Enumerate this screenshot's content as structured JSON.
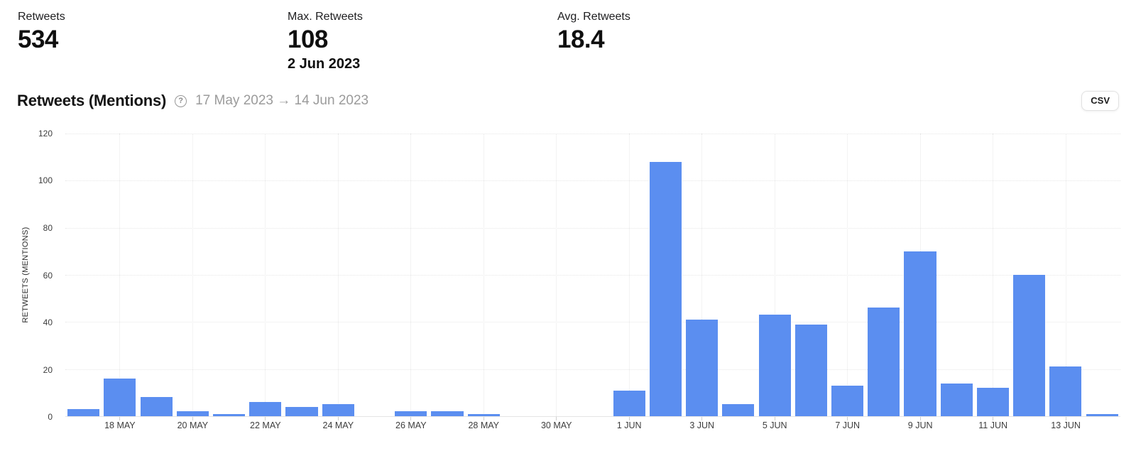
{
  "stats": [
    {
      "label": "Retweets",
      "value": "534",
      "sub": ""
    },
    {
      "label": "Max. Retweets",
      "value": "108",
      "sub": "2 Jun 2023"
    },
    {
      "label": "Avg. Retweets",
      "value": "18.4",
      "sub": ""
    }
  ],
  "header": {
    "title": "Retweets (Mentions)",
    "help_icon": "question-circle-icon",
    "help_glyph": "?",
    "date_range": "17 May 2023 → 14 Jun 2023",
    "csv_label": "CSV"
  },
  "chart_data": {
    "type": "bar",
    "title": "Retweets (Mentions)",
    "xlabel": "",
    "ylabel": "RETWEETS (MENTIONS)",
    "ylim": [
      0,
      120
    ],
    "yticks": [
      0,
      20,
      40,
      60,
      80,
      100,
      120
    ],
    "grid": "dotted horizontal at each ytick, dotted vertical at each labeled date",
    "legend": "none",
    "bar_color": "#5b8ef0",
    "categories": [
      "17 May",
      "18 May",
      "19 May",
      "20 May",
      "21 May",
      "22 May",
      "23 May",
      "24 May",
      "25 May",
      "26 May",
      "27 May",
      "28 May",
      "29 May",
      "30 May",
      "31 May",
      "1 Jun",
      "2 Jun",
      "3 Jun",
      "4 Jun",
      "5 Jun",
      "6 Jun",
      "7 Jun",
      "8 Jun",
      "9 Jun",
      "10 Jun",
      "11 Jun",
      "12 Jun",
      "13 Jun",
      "14 Jun"
    ],
    "values": [
      3,
      16,
      8,
      2,
      1,
      6,
      4,
      5,
      0,
      2,
      2,
      1,
      0,
      0,
      0,
      11,
      108,
      41,
      5,
      43,
      39,
      13,
      46,
      70,
      14,
      12,
      60,
      21,
      1
    ],
    "x_tick_labels": [
      "",
      "18 MAY",
      "",
      "20 MAY",
      "",
      "22 MAY",
      "",
      "24 MAY",
      "",
      "26 MAY",
      "",
      "28 MAY",
      "",
      "30 MAY",
      "",
      "1 JUN",
      "",
      "3 JUN",
      "",
      "5 JUN",
      "",
      "7 JUN",
      "",
      "9 JUN",
      "",
      "11 JUN",
      "",
      "13 JUN",
      ""
    ]
  }
}
